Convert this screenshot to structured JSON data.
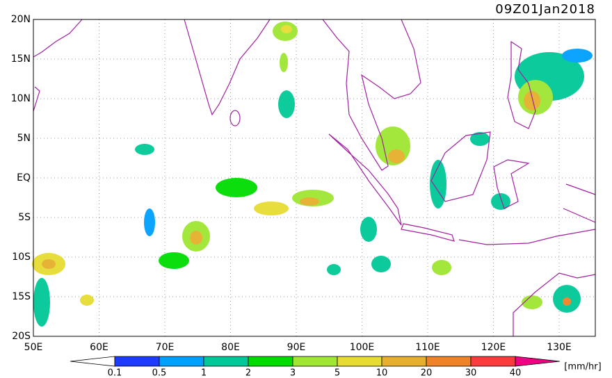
{
  "map": {
    "title": "09Z01Jan2018",
    "lon_labels": [
      "50E",
      "60E",
      "70E",
      "80E",
      "90E",
      "100E",
      "110E",
      "120E",
      "130E"
    ],
    "lat_labels": [
      "20N",
      "15N",
      "10N",
      "5N",
      "EQ",
      "5S",
      "10S",
      "15S",
      "20S"
    ],
    "colorbar": {
      "labels": [
        "0.1",
        "0.5",
        "1",
        "2",
        "3",
        "5",
        "10",
        "20",
        "30",
        "40"
      ],
      "colors": [
        "#ffffff",
        "#1e3cff",
        "#00a0ff",
        "#00c896",
        "#00dc00",
        "#a0e632",
        "#e6dc32",
        "#e6af2d",
        "#f08228",
        "#fa3c3c",
        "#f00082"
      ],
      "unit": "[mm/hr]"
    }
  }
}
